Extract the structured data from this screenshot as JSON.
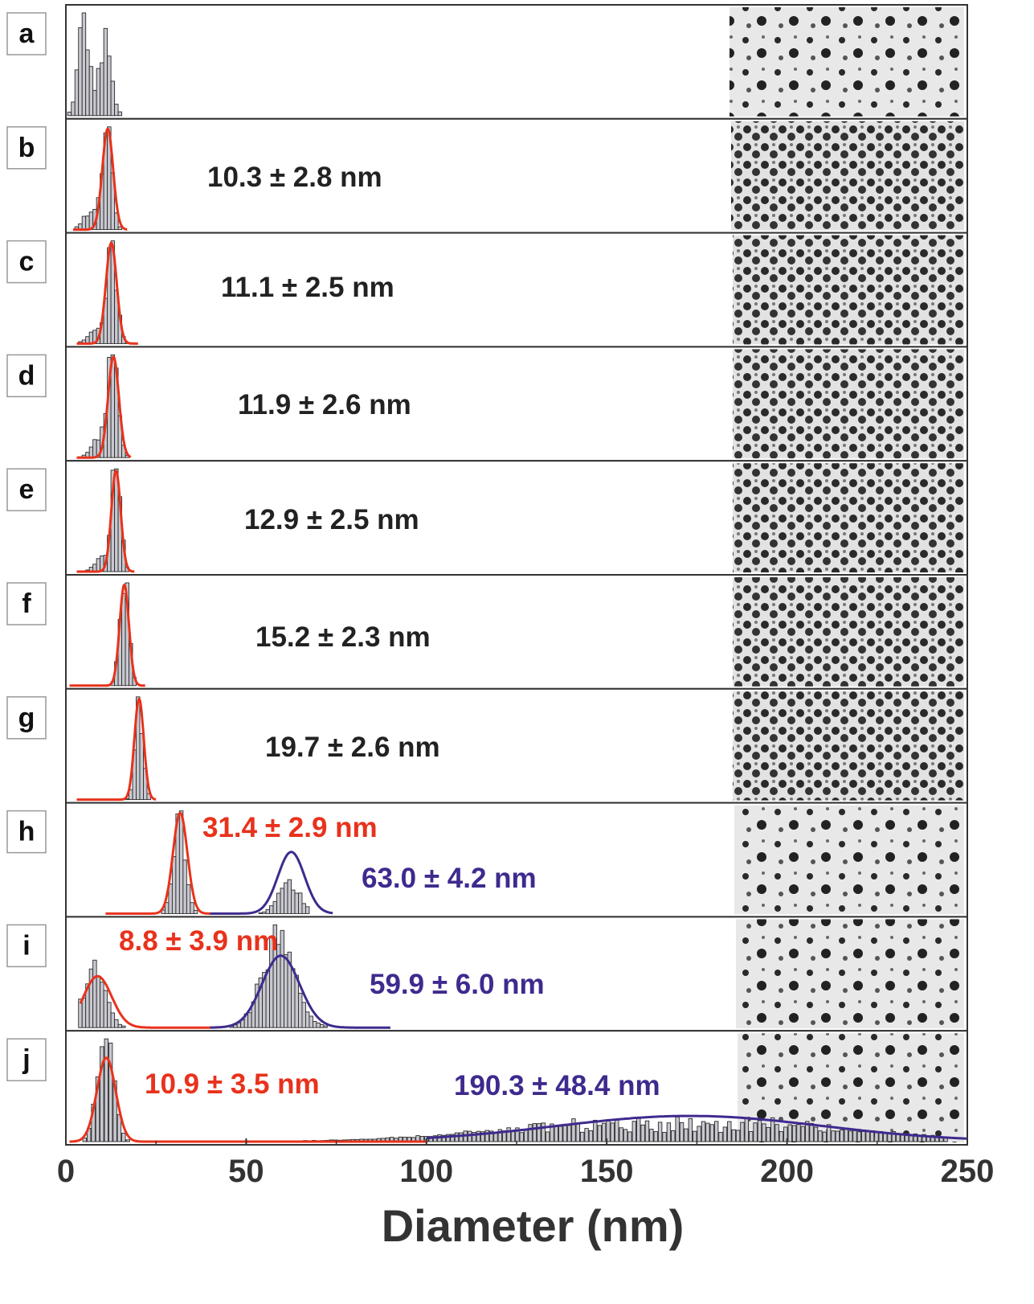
{
  "chart_data": {
    "type": "bar",
    "xlabel": "Diameter (nm)",
    "xlim": [
      0,
      250
    ],
    "xticks": [
      "0",
      "50",
      "100",
      "150",
      "200",
      "250"
    ],
    "panels": [
      {
        "label": "a",
        "peaks": [
          {
            "mean": 5,
            "sd": 1.6,
            "weight": 0.55
          },
          {
            "mean": 11,
            "sd": 1.6,
            "weight": 0.45
          }
        ],
        "range": [
          1,
          17
        ],
        "fits": []
      },
      {
        "label": "b",
        "peaks": [
          {
            "mean": 11.5,
            "sd": 1.3,
            "weight": 0.85
          },
          {
            "mean": 7,
            "sd": 2.0,
            "weight": 0.15
          }
        ],
        "range": [
          2,
          19
        ],
        "fits": [
          {
            "text": "10.3 ± 2.8 nm",
            "mean": 11.6,
            "sd": 1.5,
            "range": [
              2,
              17
            ],
            "color": "red"
          }
        ]
      },
      {
        "label": "c",
        "peaks": [
          {
            "mean": 12.8,
            "sd": 1.4,
            "weight": 0.88
          },
          {
            "mean": 8,
            "sd": 2.0,
            "weight": 0.12
          }
        ],
        "range": [
          3,
          20
        ],
        "fits": [
          {
            "text": "11.1 ± 2.5 nm",
            "mean": 12.6,
            "sd": 1.5,
            "range": [
              3,
              20
            ],
            "color": "red"
          }
        ]
      },
      {
        "label": "d",
        "peaks": [
          {
            "mean": 13,
            "sd": 1.4,
            "weight": 0.88
          },
          {
            "mean": 9,
            "sd": 2.0,
            "weight": 0.12
          }
        ],
        "range": [
          3,
          19
        ],
        "fits": [
          {
            "text": "11.9 ± 2.6 nm",
            "mean": 13.2,
            "sd": 1.5,
            "range": [
              3,
              18
            ],
            "color": "red"
          }
        ]
      },
      {
        "label": "e",
        "peaks": [
          {
            "mean": 14,
            "sd": 1.2,
            "weight": 0.9
          },
          {
            "mean": 10,
            "sd": 2.0,
            "weight": 0.1
          }
        ],
        "range": [
          3,
          19
        ],
        "fits": [
          {
            "text": "12.9 ± 2.5 nm",
            "mean": 13.9,
            "sd": 1.3,
            "range": [
              3,
              19
            ],
            "color": "red"
          }
        ]
      },
      {
        "label": "f",
        "peaks": [
          {
            "mean": 16.2,
            "sd": 1.2,
            "weight": 1.0
          }
        ],
        "range": [
          10,
          25
        ],
        "fits": [
          {
            "text": "15.2 ± 2.3 nm",
            "mean": 16.2,
            "sd": 1.3,
            "range": [
              1,
              22
            ],
            "color": "red"
          }
        ]
      },
      {
        "label": "g",
        "peaks": [
          {
            "mean": 20.4,
            "sd": 1.1,
            "weight": 1.0
          }
        ],
        "range": [
          15,
          26
        ],
        "fits": [
          {
            "text": "19.7 ± 2.6 nm",
            "mean": 20.3,
            "sd": 1.3,
            "range": [
              3,
              25
            ],
            "color": "red"
          }
        ]
      },
      {
        "label": "h",
        "peaks": [
          {
            "mean": 31.5,
            "sd": 1.8,
            "weight": 0.75
          },
          {
            "mean": 62,
            "sd": 3.0,
            "weight": 0.25
          }
        ],
        "range": [
          27,
          67
        ],
        "fits": [
          {
            "text": "31.4 ± 2.9 nm",
            "mean": 31.7,
            "sd": 2.0,
            "range": [
              11,
              40
            ],
            "color": "red"
          },
          {
            "text": "63.0 ± 4.2 nm",
            "mean": 62.5,
            "sd": 3.7,
            "range": [
              40,
              74
            ],
            "color": "purple"
          }
        ]
      },
      {
        "label": "i",
        "peaks": [
          {
            "mean": 8,
            "sd": 3.0,
            "weight": 0.4
          },
          {
            "mean": 59,
            "sd": 4.5,
            "weight": 0.6
          }
        ],
        "range": [
          4,
          76
        ],
        "fits": [
          {
            "text": "8.8 ± 3.9 nm",
            "mean": 8.8,
            "sd": 3.9,
            "range": [
              4,
              40
            ],
            "color": "red"
          },
          {
            "text": "59.9 ± 6.0 nm",
            "mean": 59.6,
            "sd": 5.2,
            "range": [
              40,
              90
            ],
            "color": "purple"
          }
        ]
      },
      {
        "label": "j",
        "peaks": [
          {
            "mean": 11,
            "sd": 2.2,
            "weight": 0.8
          },
          {
            "mean": 170,
            "sd": 40,
            "weight": 0.2
          }
        ],
        "range": [
          4,
          245
        ],
        "fits": [
          {
            "text": "10.9 ± 3.5 nm",
            "mean": 11.2,
            "sd": 2.6,
            "range": [
              1,
              100
            ],
            "color": "red"
          },
          {
            "text": "190.3 ± 48.4 nm",
            "mean": 173,
            "sd": 37,
            "range": [
              100,
              250
            ],
            "color": "purple"
          }
        ]
      }
    ],
    "colors": {
      "bar_fill": "#c8c8d0",
      "bar_edge": "#2a2a2a",
      "fit_red": "#e8321c",
      "fit_purple": "#3f2a8e",
      "text_dark": "#222222"
    }
  }
}
